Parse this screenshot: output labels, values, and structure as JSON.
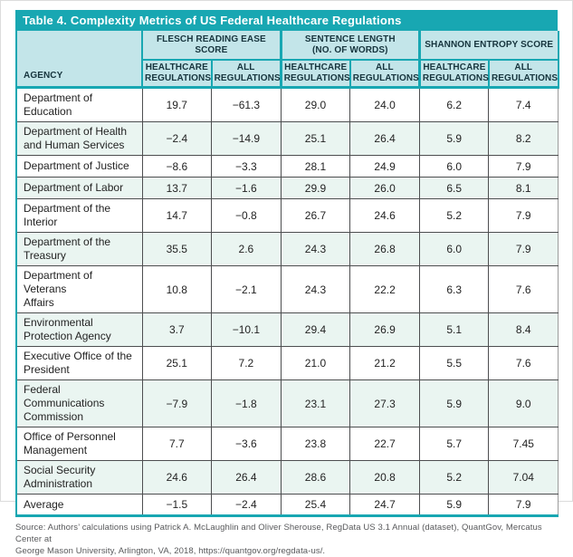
{
  "title": "Table 4. Complexity Metrics of US Federal Healthcare Regulations",
  "colors": {
    "teal_accent": "#18A7B2",
    "header_bg": "#C3E5E9",
    "alt_row_bg": "#EAF5F1",
    "body_border": "#4D4E50",
    "source_text": "#58595B"
  },
  "table": {
    "agency_header": "AGENCY",
    "groups": [
      {
        "label": "FLESCH READING EASE SCORE"
      },
      {
        "label": "SENTENCE LENGTH\n(NO. OF WORDS)"
      },
      {
        "label": "SHANNON ENTROPY SCORE"
      }
    ],
    "subheaders": [
      "HEALTHCARE\nREGULATIONS",
      "ALL\nREGULATIONS",
      "HEALTHCARE\nREGULATIONS",
      "ALL\nREGULATIONS",
      "HEALTHCARE\nREGULATIONS",
      "ALL\nREGULATIONS"
    ],
    "rows": [
      {
        "agency": "Department of\nEducation",
        "values": [
          "19.7",
          "−61.3",
          "29.0",
          "24.0",
          "6.2",
          "7.4"
        ]
      },
      {
        "agency": "Department of Health\nand Human Services",
        "values": [
          "−2.4",
          "−14.9",
          "25.1",
          "26.4",
          "5.9",
          "8.2"
        ]
      },
      {
        "agency": "Department of Justice",
        "values": [
          "−8.6",
          "−3.3",
          "28.1",
          "24.9",
          "6.0",
          "7.9"
        ]
      },
      {
        "agency": "Department of Labor",
        "values": [
          "13.7",
          "−1.6",
          "29.9",
          "26.0",
          "6.5",
          "8.1"
        ]
      },
      {
        "agency": "Department of the\nInterior",
        "values": [
          "14.7",
          "−0.8",
          "26.7",
          "24.6",
          "5.2",
          "7.9"
        ]
      },
      {
        "agency": "Department of the\nTreasury",
        "values": [
          "35.5",
          "2.6",
          "24.3",
          "26.8",
          "6.0",
          "7.9"
        ]
      },
      {
        "agency": "Department of Veterans\nAffairs",
        "values": [
          "10.8",
          "−2.1",
          "24.3",
          "22.2",
          "6.3",
          "7.6"
        ]
      },
      {
        "agency": "Environmental\nProtection Agency",
        "values": [
          "3.7",
          "−10.1",
          "29.4",
          "26.9",
          "5.1",
          "8.4"
        ]
      },
      {
        "agency": "Executive Office of the\nPresident",
        "values": [
          "25.1",
          "7.2",
          "21.0",
          "21.2",
          "5.5",
          "7.6"
        ]
      },
      {
        "agency": "Federal\nCommunications\nCommission",
        "values": [
          "−7.9",
          "−1.8",
          "23.1",
          "27.3",
          "5.9",
          "9.0"
        ]
      },
      {
        "agency": "Office of Personnel\nManagement",
        "values": [
          "7.7",
          "−3.6",
          "23.8",
          "22.7",
          "5.7",
          "7.45"
        ]
      },
      {
        "agency": "Social Security\nAdministration",
        "values": [
          "24.6",
          "26.4",
          "28.6",
          "20.8",
          "5.2",
          "7.04"
        ]
      },
      {
        "agency": "Average",
        "values": [
          "−1.5",
          "−2.4",
          "25.4",
          "24.7",
          "5.9",
          "7.9"
        ]
      }
    ]
  },
  "source": "Source: Authors’ calculations using Patrick A. McLaughlin and Oliver Sherouse, RegData US 3.1 Annual (dataset), QuantGov, Mercatus Center at\nGeorge Mason University, Arlington, VA, 2018, https://quantgov.org/regdata-us/."
}
